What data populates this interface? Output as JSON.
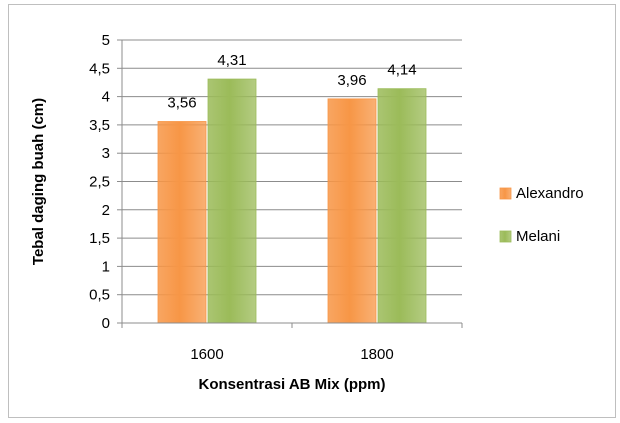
{
  "chart_data": {
    "type": "bar",
    "categories": [
      "1600",
      "1800"
    ],
    "series": [
      {
        "name": "Alexandro",
        "values": [
          3.56,
          3.96
        ],
        "labels": [
          "3,56",
          "3,96"
        ],
        "color": "#f79646"
      },
      {
        "name": "Melani",
        "values": [
          4.31,
          4.14
        ],
        "labels": [
          "4,31",
          "4,14"
        ],
        "color": "#9bbb59"
      }
    ],
    "xlabel": "Konsentrasi AB Mix (ppm)",
    "ylabel": "Tebal daging buah (cm)",
    "ylim": [
      0,
      5
    ],
    "yticks": [
      0,
      0.5,
      1,
      1.5,
      2,
      2.5,
      3,
      3.5,
      4,
      4.5,
      5
    ],
    "ytick_labels": [
      "0",
      "0,5",
      "1",
      "1,5",
      "2",
      "2,5",
      "3",
      "3,5",
      "4",
      "4,5",
      "5"
    ],
    "grid": true,
    "legend": "right"
  }
}
